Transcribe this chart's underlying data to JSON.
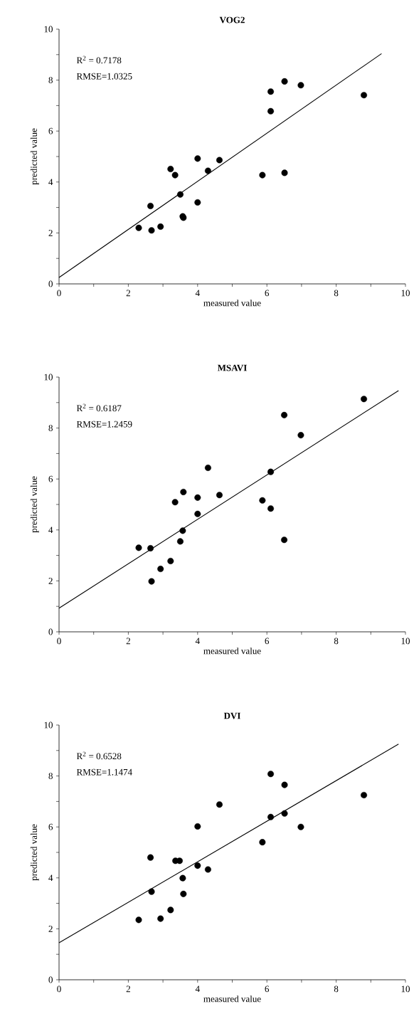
{
  "chart_data": [
    {
      "type": "scatter",
      "title": "VOG2",
      "xlabel": "measured value",
      "ylabel": "predicted value",
      "annotations": [
        "R$^{2}$ = 0.7178",
        "RMSE=1.0325"
      ],
      "xlim": [
        0,
        10
      ],
      "ylim": [
        0,
        10
      ],
      "xticks": [
        0,
        {
          "value": 1,
          "label": null
        },
        2,
        {
          "value": 3,
          "label": null
        },
        4,
        {
          "value": 5,
          "label": null
        },
        6,
        {
          "value": 7,
          "label": null
        },
        8,
        {
          "value": 9,
          "label": null
        },
        10
      ],
      "yticks": [
        0,
        {
          "value": 1,
          "label": null
        },
        2,
        {
          "value": 3,
          "label": null
        },
        4,
        {
          "value": 5,
          "label": null
        },
        6,
        {
          "value": 7,
          "label": null
        },
        8,
        {
          "value": 9,
          "label": null
        },
        10
      ],
      "series": [
        {
          "marker": "circle",
          "color": "#000000",
          "x": [
            2.3,
            2.64,
            2.67,
            2.93,
            3.22,
            3.35,
            3.5,
            3.57,
            3.59,
            4.0,
            4.0,
            4.3,
            4.63,
            5.87,
            6.11,
            6.11,
            6.51,
            6.51,
            6.98,
            8.8
          ],
          "values": [
            2.2,
            3.06,
            2.1,
            2.25,
            4.51,
            4.27,
            3.51,
            2.65,
            2.6,
            4.92,
            3.2,
            4.44,
            4.86,
            4.27,
            7.55,
            6.78,
            7.95,
            4.36,
            7.8,
            7.41
          ]
        },
        {
          "type": "line",
          "marker": "none",
          "color": "#000000",
          "x": [
            0,
            9.31
          ],
          "values": [
            0.25,
            9.04
          ]
        }
      ]
    },
    {
      "type": "scatter",
      "title": "MSAVI",
      "xlabel": "measured value",
      "ylabel": "predicted value",
      "annotations": [
        "R$^{2}$ = 0.6187",
        "RMSE=1.2459"
      ],
      "xlim": [
        0,
        10
      ],
      "ylim": [
        0,
        10
      ],
      "xticks": [
        0,
        {
          "value": 1,
          "label": null
        },
        2,
        {
          "value": 3,
          "label": null
        },
        4,
        {
          "value": 5,
          "label": null
        },
        6,
        {
          "value": 7,
          "label": null
        },
        8,
        {
          "value": 9,
          "label": null
        },
        10
      ],
      "yticks": [
        0,
        {
          "value": 1,
          "label": null
        },
        2,
        {
          "value": 3,
          "label": null
        },
        4,
        {
          "value": 5,
          "label": null
        },
        6,
        {
          "value": 7,
          "label": null
        },
        8,
        {
          "value": 9,
          "label": null
        },
        10
      ],
      "series": [
        {
          "marker": "circle",
          "color": "#000000",
          "x": [
            2.3,
            2.64,
            2.67,
            2.93,
            3.22,
            3.35,
            3.5,
            3.57,
            3.59,
            4.0,
            4.0,
            4.3,
            4.63,
            5.87,
            6.11,
            6.11,
            6.5,
            6.5,
            6.98,
            8.8
          ],
          "values": [
            3.3,
            3.28,
            1.98,
            2.47,
            2.78,
            5.09,
            3.55,
            3.97,
            5.49,
            5.27,
            4.63,
            6.44,
            5.37,
            5.16,
            6.28,
            4.84,
            8.51,
            3.61,
            7.72,
            9.14
          ]
        },
        {
          "type": "line",
          "marker": "none",
          "color": "#000000",
          "x": [
            0,
            9.8
          ],
          "values": [
            0.93,
            9.47
          ]
        }
      ]
    },
    {
      "type": "scatter",
      "title": "DVI",
      "xlabel": "measured value",
      "ylabel": "predicted value",
      "annotations": [
        "R$^{2}$ = 0.6528",
        "RMSE=1.1474"
      ],
      "xlim": [
        0,
        10
      ],
      "ylim": [
        0,
        10
      ],
      "xticks": [
        0,
        {
          "value": 1,
          "label": null
        },
        2,
        {
          "value": 3,
          "label": null
        },
        4,
        {
          "value": 5,
          "label": null
        },
        6,
        {
          "value": 7,
          "label": null
        },
        8,
        {
          "value": 9,
          "label": null
        },
        10
      ],
      "yticks": [
        0,
        {
          "value": 1,
          "label": null
        },
        2,
        {
          "value": 3,
          "label": null
        },
        4,
        {
          "value": 5,
          "label": null
        },
        6,
        {
          "value": 7,
          "label": null
        },
        8,
        {
          "value": 9,
          "label": null
        },
        10
      ],
      "series": [
        {
          "marker": "circle",
          "color": "#000000",
          "x": [
            2.3,
            2.64,
            2.67,
            2.93,
            3.22,
            3.36,
            3.48,
            3.57,
            3.59,
            4.0,
            4.0,
            4.3,
            4.63,
            5.87,
            6.11,
            6.11,
            6.51,
            6.51,
            6.98,
            8.8
          ],
          "values": [
            2.35,
            4.8,
            3.46,
            2.4,
            2.74,
            4.67,
            4.67,
            3.99,
            3.37,
            6.02,
            4.48,
            4.33,
            6.88,
            5.4,
            8.08,
            6.39,
            7.65,
            6.53,
            6.0,
            7.25
          ]
        },
        {
          "type": "line",
          "marker": "none",
          "color": "#000000",
          "x": [
            0,
            9.8
          ],
          "values": [
            1.45,
            9.25
          ]
        }
      ]
    }
  ]
}
